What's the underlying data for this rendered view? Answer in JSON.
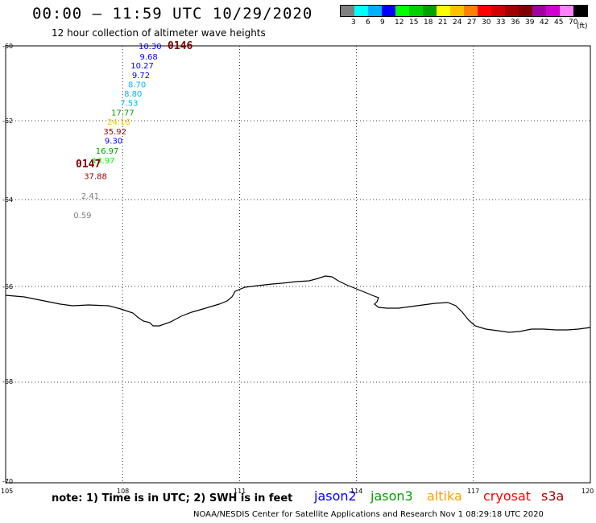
{
  "header": {
    "title": "00:00 – 11:59 UTC 10/29/2020",
    "subtitle": "12 hour collection of altimeter wave heights"
  },
  "scale": {
    "colors": [
      "#808080",
      "#00ffff",
      "#00b0ff",
      "#0000ff",
      "#00ff00",
      "#00d000",
      "#00a000",
      "#ffff00",
      "#ffc000",
      "#ff8000",
      "#ff0000",
      "#d00000",
      "#a00000",
      "#800000",
      "#a000a0",
      "#d000d0",
      "#ff80ff",
      "#000000"
    ],
    "labels": [
      "3",
      "6",
      "9",
      "12",
      "15",
      "18",
      "21",
      "24",
      "27",
      "30",
      "33",
      "36",
      "39",
      "42",
      "45",
      "70"
    ],
    "unit": "(ft)"
  },
  "axes": {
    "y_labels": [
      "-60",
      "-62",
      "-64",
      "-66",
      "-68",
      "-70"
    ],
    "x_labels": [
      "105",
      "108",
      "111",
      "114",
      "117",
      "120"
    ]
  },
  "track": {
    "points": [
      {
        "lon": 109.0,
        "lat": -60.0,
        "value": "10.30",
        "color": "#0000ff"
      },
      {
        "lon": 108.9,
        "lat": -60.28,
        "value": "9.68",
        "color": "#0000ff"
      },
      {
        "lon": 108.8,
        "lat": -60.52,
        "value": "10.27",
        "color": "#0000ff"
      },
      {
        "lon": 108.7,
        "lat": -60.77,
        "value": "9.72",
        "color": "#0000ff"
      },
      {
        "lon": 108.6,
        "lat": -61.02,
        "value": "8.70",
        "color": "#00b0ff"
      },
      {
        "lon": 108.5,
        "lat": -61.27,
        "value": "8.80",
        "color": "#00b0ff"
      },
      {
        "lon": 108.4,
        "lat": -61.52,
        "value": "7.53",
        "color": "#00b0ff"
      },
      {
        "lon": 108.3,
        "lat": -61.77,
        "value": "17.77",
        "color": "#00a000"
      },
      {
        "lon": 108.2,
        "lat": -62.02,
        "value": "24.16",
        "color": "#ffc000"
      },
      {
        "lon": 108.1,
        "lat": -62.27,
        "value": "35.92",
        "color": "#a00000"
      },
      {
        "lon": 108.0,
        "lat": -62.5,
        "value": "9.30",
        "color": "#0000ff"
      },
      {
        "lon": 107.9,
        "lat": -62.75,
        "value": "16.97",
        "color": "#00a000"
      },
      {
        "lon": 107.8,
        "lat": -63.0,
        "value": "13.97",
        "color": "#00ff00"
      },
      {
        "lon": 107.6,
        "lat": -63.4,
        "value": "37.88",
        "color": "#a00000"
      },
      {
        "lon": 107.4,
        "lat": -63.9,
        "value": "2.41",
        "color": "#808080"
      },
      {
        "lon": 107.2,
        "lat": -64.35,
        "value": "0.59",
        "color": "#808080"
      }
    ],
    "time_labels": [
      "0146",
      "0147"
    ]
  },
  "note": "note:  1)  Time is in UTC;  2)  SWH is in feet",
  "satellites": [
    {
      "name": "jason2",
      "color": "#0000ff"
    },
    {
      "name": "jason3",
      "color": "#00a000"
    },
    {
      "name": "altika",
      "color": "#ffa000"
    },
    {
      "name": "cryosat",
      "color": "#ff0000"
    },
    {
      "name": "s3a",
      "color": "#a00000"
    }
  ],
  "footer": "NOAA/NESDIS Center for Satellite Applications and Research     Nov  1 08:29:18 UTC 2020"
}
